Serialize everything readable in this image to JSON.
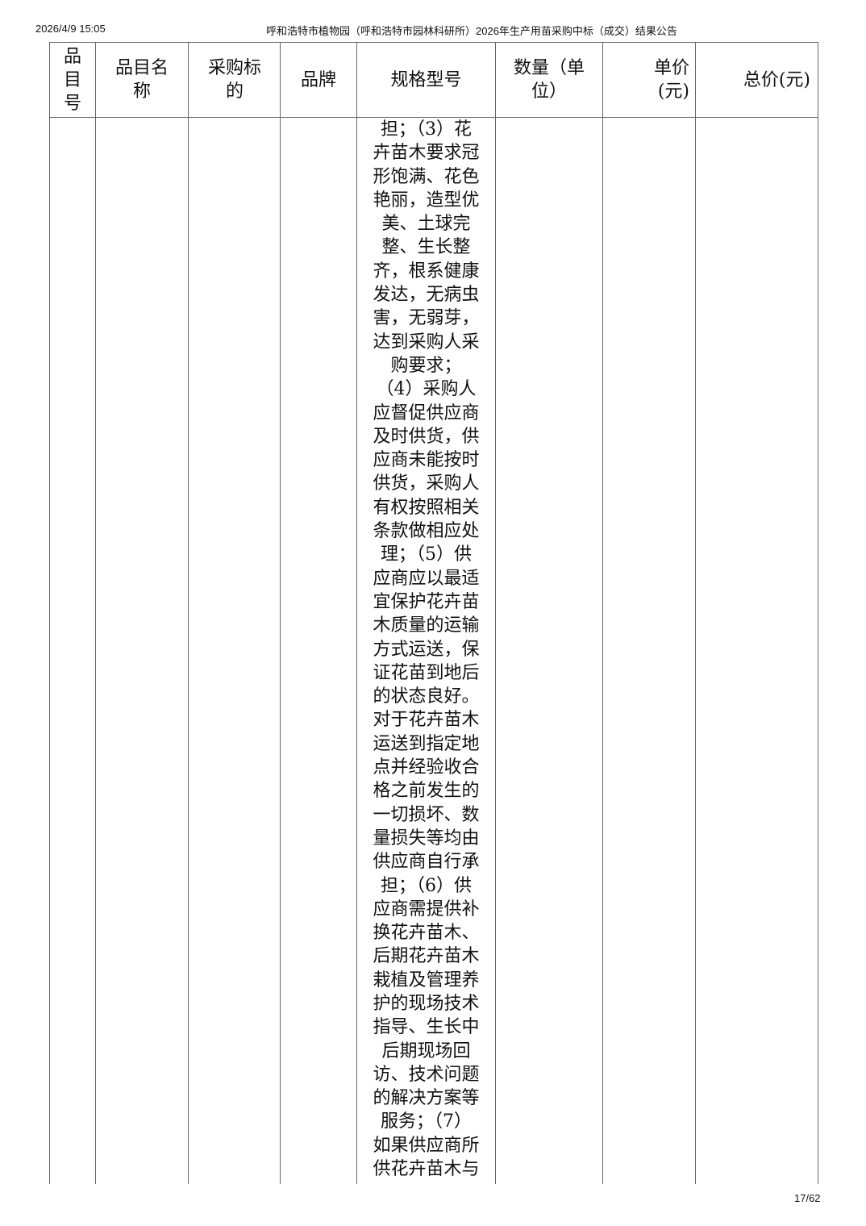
{
  "header": {
    "datetime": "2026/4/9 15:05",
    "title": "呼和浩特市植物园（呼和浩特市园林科研所）2026年生产用苗采购中标（成交）结果公告"
  },
  "table": {
    "columns": [
      "品目号",
      "品目名称",
      "采购标的",
      "品牌",
      "规格型号",
      "数量（单位）",
      "单价(元)",
      "总价(元)"
    ],
    "spec_lines": [
      "担；（3）花",
      "卉苗木要求冠",
      "形饱满、花色",
      "艳丽，造型优",
      "美、土球完",
      "整、生长整",
      "齐，根系健康",
      "发达，无病虫",
      "害，无弱芽，",
      "达到采购人采",
      "购要求；",
      "（4）采购人",
      "应督促供应商",
      "及时供货，供",
      "应商未能按时",
      "供货，采购人",
      "有权按照相关",
      "条款做相应处",
      "理；（5）供",
      "应商应以最适",
      "宜保护花卉苗",
      "木质量的运输",
      "方式运送，保",
      "证花苗到地后",
      "的状态良好。",
      "对于花卉苗木",
      "运送到指定地",
      "点并经验收合",
      "格之前发生的",
      "一切损坏、数",
      "量损失等均由",
      "供应商自行承",
      "担；（6）供",
      "应商需提供补",
      "换花卉苗木、",
      "后期花卉苗木",
      "栽植及管理养",
      "护的现场技术",
      "指导、生长中",
      "后期现场回",
      "访、技术问题",
      "的解决方案等",
      "服务；（7）",
      "如果供应商所",
      "供花卉苗木与"
    ]
  },
  "footer": {
    "page": "17/62"
  }
}
